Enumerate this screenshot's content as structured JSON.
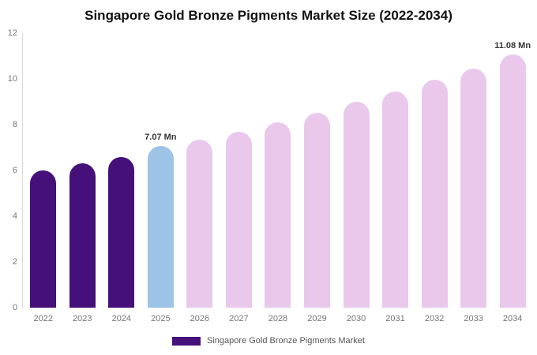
{
  "title": "Singapore Gold Bronze Pigments Market Size (2022-2034)",
  "legend": {
    "label": "Singapore Gold Bronze Pigments Market",
    "swatch_color": "#45107a"
  },
  "colors": {
    "historical_purple": "#45107a",
    "current_year_blue": "#9dc3e6",
    "forecast_pink": "#e9c8ec",
    "axis_text": "#757575",
    "title_text": "#111111"
  },
  "chart_data": {
    "type": "bar",
    "title": "Singapore Gold Bronze Pigments Market Size (2022-2034)",
    "unit": "Mn",
    "categories": [
      "2022",
      "2023",
      "2024",
      "2025",
      "2026",
      "2027",
      "2028",
      "2029",
      "2030",
      "2031",
      "2032",
      "2033",
      "2034"
    ],
    "values": [
      6.0,
      6.3,
      6.6,
      7.07,
      7.35,
      7.7,
      8.1,
      8.5,
      9.0,
      9.45,
      9.95,
      10.45,
      11.08
    ],
    "bar_colors": [
      "#45107a",
      "#45107a",
      "#45107a",
      "#9dc3e6",
      "#e9c8ec",
      "#e9c8ec",
      "#e9c8ec",
      "#e9c8ec",
      "#e9c8ec",
      "#e9c8ec",
      "#e9c8ec",
      "#e9c8ec",
      "#e9c8ec"
    ],
    "value_labels": {
      "2025": "7.07 Mn",
      "2034": "11.08 Mn"
    },
    "xlabel": "",
    "ylabel": "",
    "ylim": [
      0,
      12
    ],
    "yticks": [
      0,
      2,
      4,
      6,
      8,
      10,
      12
    ],
    "grid": false,
    "legend_position": "bottom",
    "legend_entries": [
      "Singapore Gold Bronze Pigments Market"
    ]
  }
}
